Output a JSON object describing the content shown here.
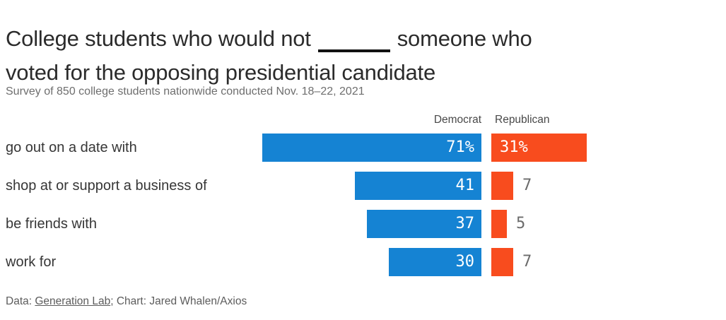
{
  "chart_data": {
    "type": "bar",
    "orientation": "horizontal",
    "title": "College students who would not ____ someone who voted for the opposing presidential candidate",
    "subtitle": "Survey of 850 college students nationwide conducted Nov. 18–22, 2021",
    "categories": [
      "go out on a date with",
      "shop at or support a business of",
      "be friends with",
      "work for"
    ],
    "series": [
      {
        "name": "Democrat",
        "color": "#1583d3",
        "values": [
          71,
          41,
          37,
          30
        ],
        "labels": [
          "71%",
          "41",
          "37",
          "30"
        ]
      },
      {
        "name": "Republican",
        "color": "#f84c1e",
        "values": [
          31,
          7,
          5,
          7
        ],
        "labels": [
          "31%",
          "7",
          "5",
          "7"
        ]
      }
    ],
    "xlim": [
      0,
      100
    ],
    "grid": false,
    "legend_position": "top"
  },
  "title_display": {
    "line1_start": "College students who would not",
    "line1_end": "someone who",
    "line2": "voted for the opposing presidential candidate"
  },
  "footer": {
    "data_prefix": "Data: ",
    "source_link": "Generation Lab",
    "credit": "; Chart: Jared Whalen/Axios"
  }
}
